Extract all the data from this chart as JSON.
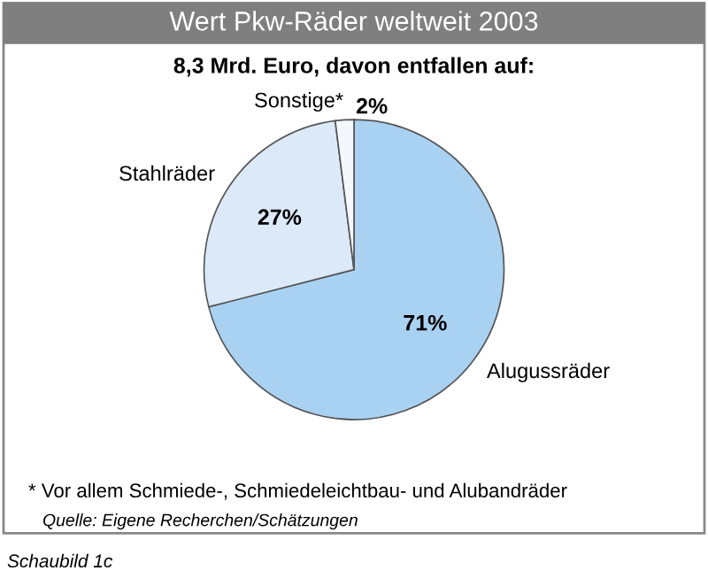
{
  "chart_data": {
    "type": "pie",
    "title": "Wert Pkw-Räder weltweit 2003",
    "subtitle": "8,3 Mrd. Euro, davon entfallen auf:",
    "categories": [
      "Alugussräder",
      "Stahlräder",
      "Sonstige*"
    ],
    "values": [
      71,
      27,
      2
    ],
    "colors": [
      "#a9d1f2",
      "#dbe9f8",
      "#f4f8fc"
    ],
    "value_labels": [
      "71%",
      "27%",
      "2%"
    ],
    "annotations": [
      "* Vor allem Schmiede-, Schmiedeleichtbau- und Alubandräder",
      "Quelle: Eigene Recherchen/Schätzungen",
      "Schaubild 1c"
    ]
  }
}
